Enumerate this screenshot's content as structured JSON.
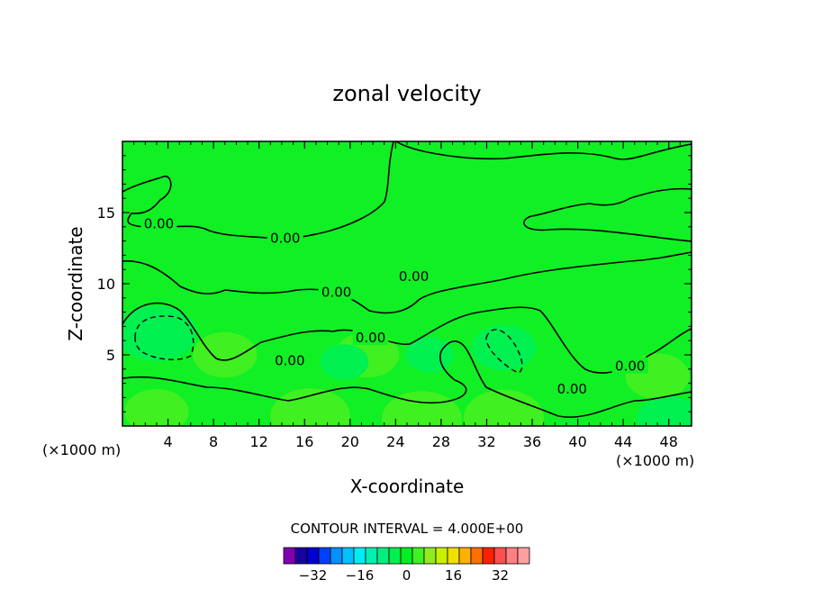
{
  "chart_data": {
    "type": "heatmap",
    "title": "zonal velocity",
    "xlabel": "X-coordinate",
    "ylabel": "Z-coordinate",
    "x_unit_left": "(×1000 m)",
    "x_unit_right": "(×1000 m)",
    "xlim": [
      0,
      50
    ],
    "ylim": [
      0,
      20
    ],
    "x_ticks": [
      4,
      8,
      12,
      16,
      20,
      24,
      28,
      32,
      36,
      40,
      44,
      48
    ],
    "y_ticks": [
      5,
      10,
      15
    ],
    "contour_interval_text": "CONTOUR INTERVAL = 4.000E+00",
    "contour_labels": [
      {
        "text": "0.00",
        "x": 3.2,
        "z": 14.2
      },
      {
        "text": "0.00",
        "x": 14.3,
        "z": 13.2
      },
      {
        "text": "0.00",
        "x": 25.6,
        "z": 10.5
      },
      {
        "text": "0.00",
        "x": 18.8,
        "z": 9.4
      },
      {
        "text": "0.00",
        "x": 21.8,
        "z": 6.2
      },
      {
        "text": "0.00",
        "x": 14.7,
        "z": 4.6
      },
      {
        "text": "0.00",
        "x": 44.6,
        "z": 4.2
      },
      {
        "text": "0.00",
        "x": 39.5,
        "z": 2.6
      }
    ],
    "features": [
      {
        "x": 3.0,
        "z": 6.5,
        "value": -12
      },
      {
        "x": 33.5,
        "z": 5.5,
        "value": -8
      },
      {
        "x": 48.0,
        "z": 0.5,
        "value": -8
      },
      {
        "x": 16.5,
        "z": 0.7,
        "value": 12
      },
      {
        "x": 26.3,
        "z": 0.5,
        "value": 12
      },
      {
        "x": 33.5,
        "z": 0.6,
        "value": 12
      },
      {
        "x": 3.0,
        "z": 1.0,
        "value": 8
      },
      {
        "x": 21.5,
        "z": 5.0,
        "value": 8
      },
      {
        "x": 47.0,
        "z": 3.5,
        "value": 8
      },
      {
        "x": 9.0,
        "z": 5.0,
        "value": 8
      },
      {
        "x": 19.5,
        "z": 4.5,
        "value": -4
      },
      {
        "x": 27.0,
        "z": 5.0,
        "value": -4
      }
    ],
    "colorbar": {
      "tick_labels": [
        "−32",
        "−16",
        "0",
        "16",
        "32"
      ],
      "tick_values": [
        -32,
        -16,
        0,
        16,
        32
      ],
      "colors": [
        "#7f00b0",
        "#1a00a0",
        "#0000d2",
        "#0040ff",
        "#0090ff",
        "#00c0ff",
        "#00ecf0",
        "#00f0b0",
        "#00f080",
        "#00f050",
        "#00f020",
        "#40f020",
        "#90ec20",
        "#c8f000",
        "#f0e000",
        "#ffb000",
        "#ff7000",
        "#ff2000",
        "#ff5050",
        "#ff8080",
        "#ffa0a0"
      ]
    }
  }
}
